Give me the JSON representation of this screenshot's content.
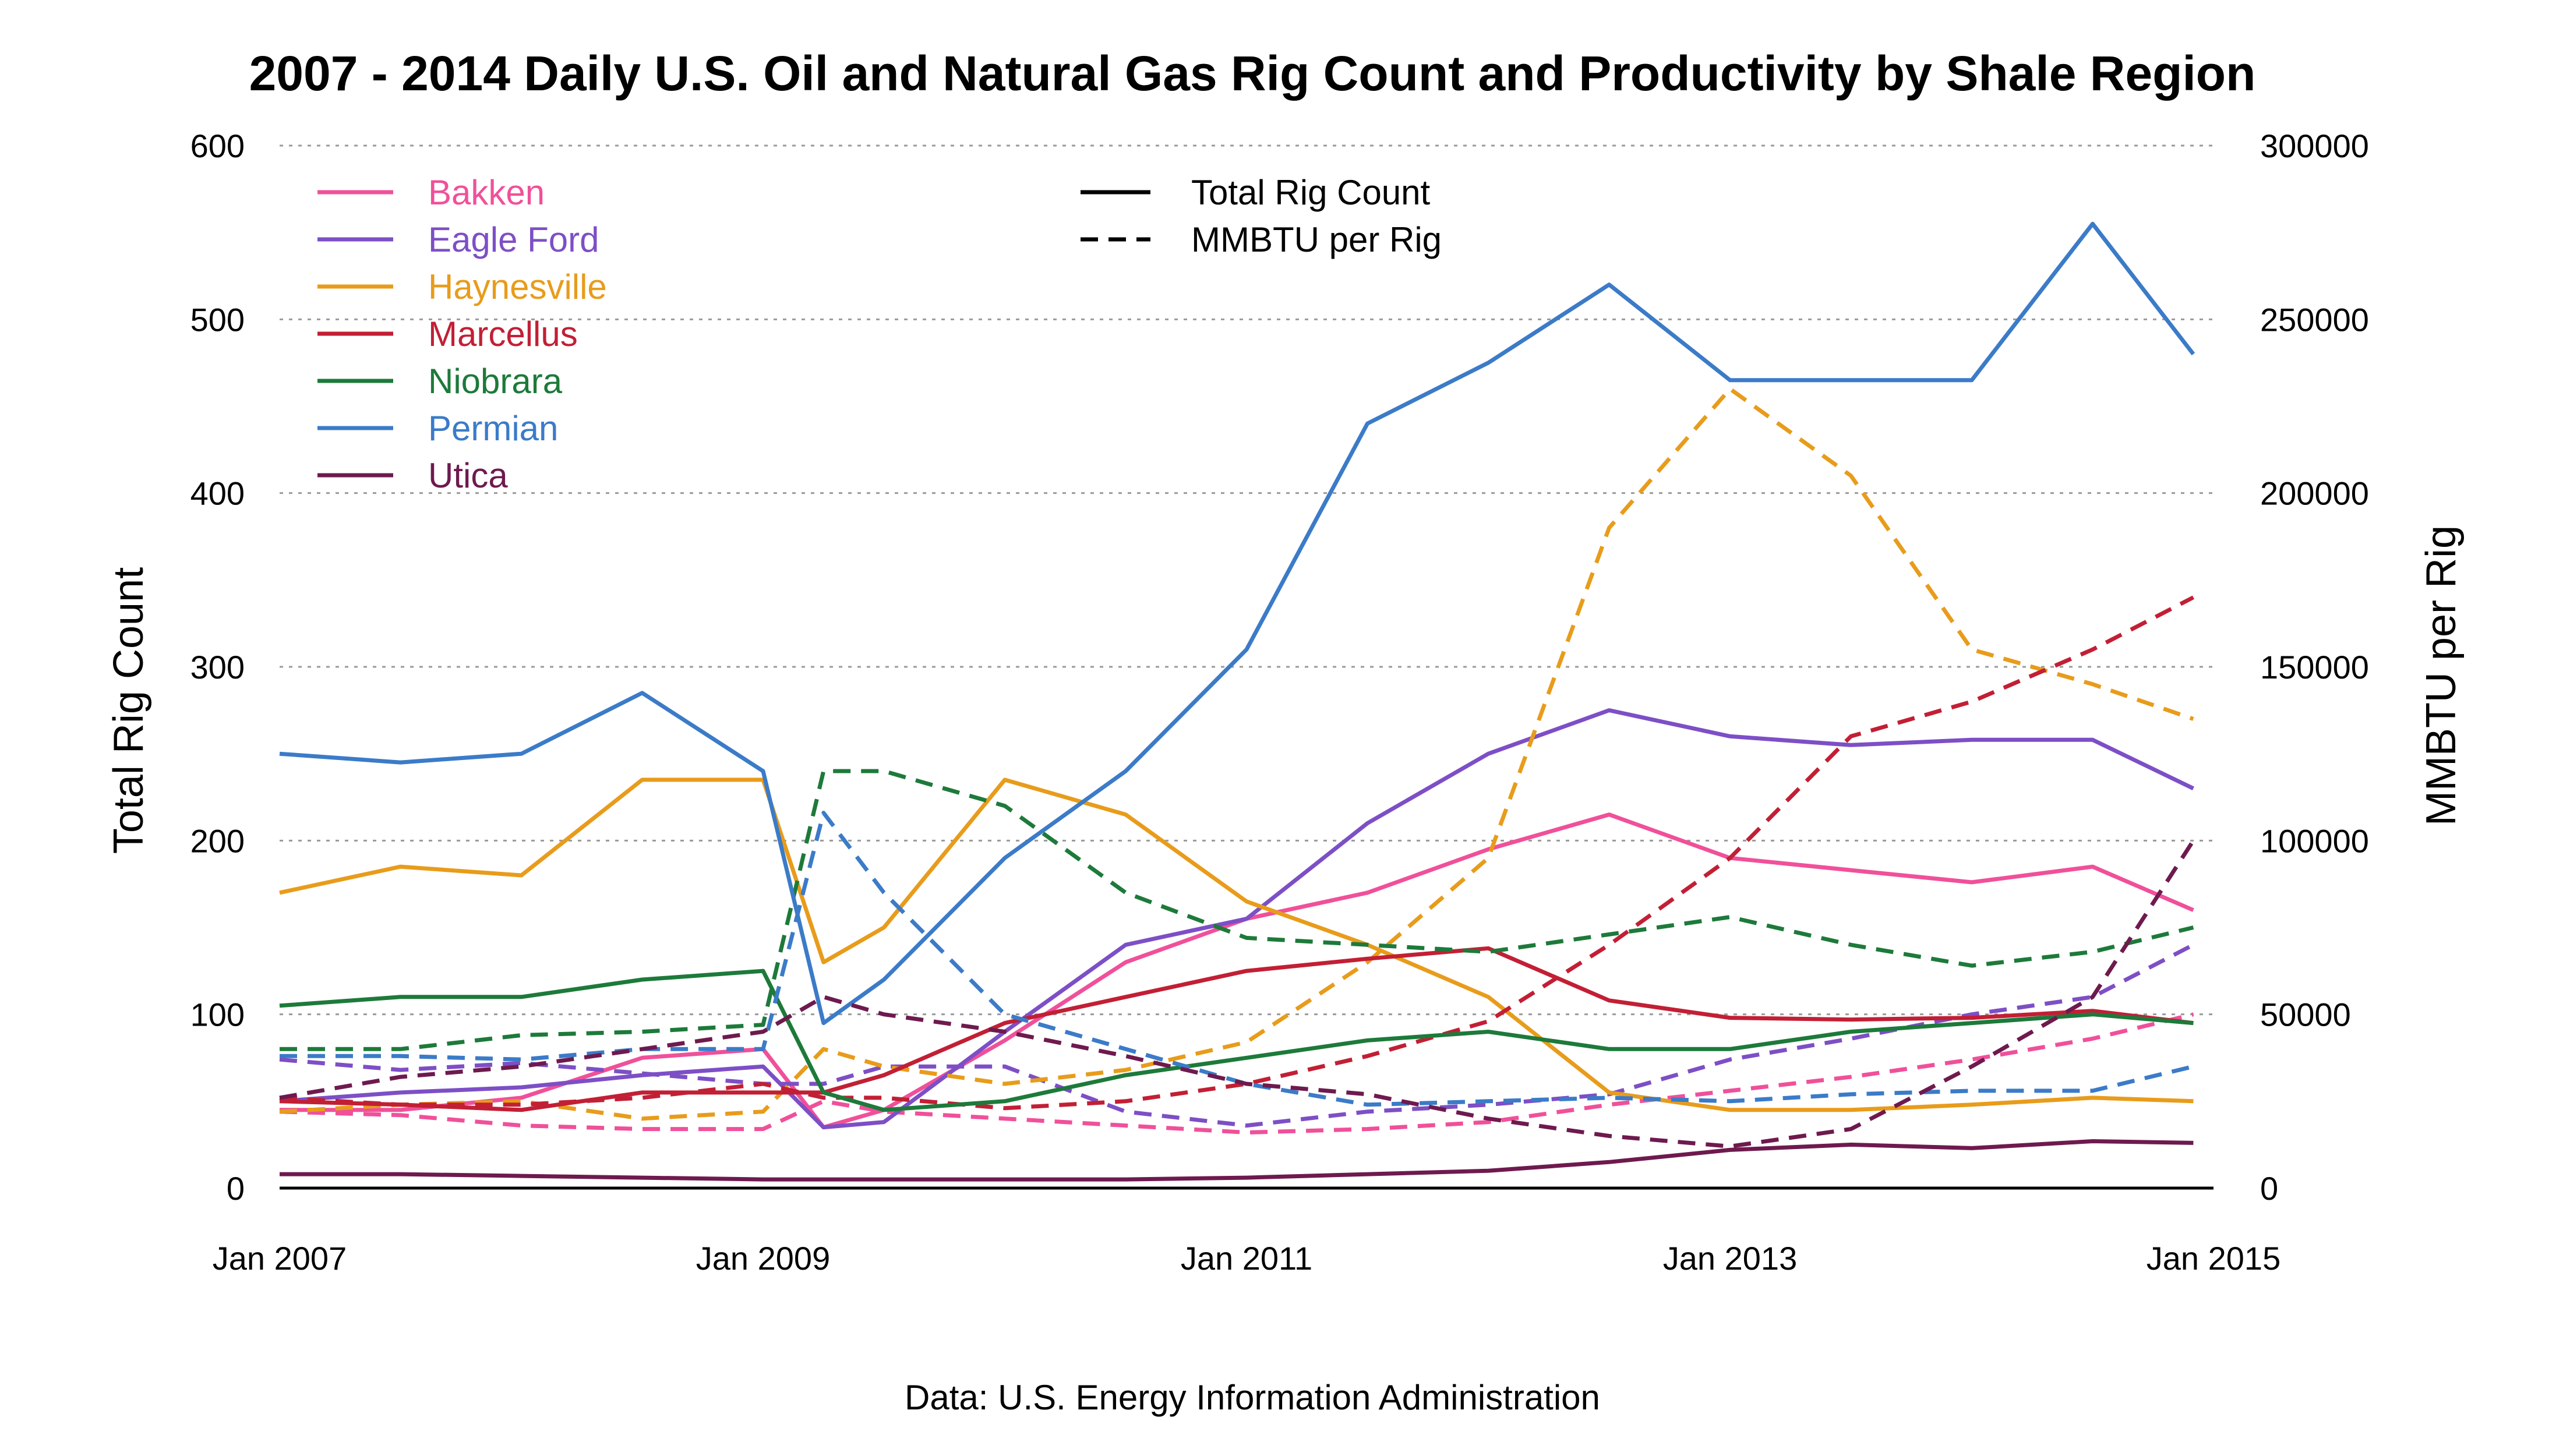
{
  "chart_data": {
    "type": "line",
    "title": "2007 - 2014 Daily U.S. Oil and Natural Gas Rig Count and Productivity by Shale Region",
    "caption": "Data: U.S. Energy Information Administration",
    "xlabel": "",
    "ylabel": "Total Rig Count",
    "y2label": "MMBTU per Rig",
    "x_ticks": [
      "Jan 2007",
      "Jan 2009",
      "Jan 2011",
      "Jan 2013",
      "Jan 2015"
    ],
    "x_range": [
      "2007-01",
      "2015-01"
    ],
    "y_ticks": [
      "0",
      "100",
      "200",
      "300",
      "400",
      "500",
      "600"
    ],
    "y2_ticks": [
      "0",
      "50000",
      "100000",
      "150000",
      "200000",
      "250000",
      "300000"
    ],
    "ylim": [
      0,
      600
    ],
    "y2lim": [
      0,
      300000
    ],
    "grid": true,
    "legend_regions_position": "top-left",
    "legend_styles_position": "top-center",
    "legend_styles": [
      {
        "label": "Total Rig Count",
        "dash": "solid"
      },
      {
        "label": "MMBTU per Rig",
        "dash": "dashed"
      }
    ],
    "x_dates": [
      "2007-01",
      "2007-07",
      "2008-01",
      "2008-07",
      "2009-01",
      "2009-04",
      "2009-07",
      "2010-01",
      "2010-07",
      "2011-01",
      "2011-07",
      "2012-01",
      "2012-07",
      "2013-01",
      "2013-07",
      "2014-01",
      "2014-07",
      "2014-12"
    ],
    "series": [
      {
        "name": "Bakken",
        "color": "#F0509A",
        "rigs": [
          45,
          45,
          52,
          75,
          80,
          35,
          45,
          85,
          130,
          155,
          170,
          195,
          215,
          190,
          183,
          176,
          185,
          160
        ],
        "mmbtu": [
          22000,
          21000,
          18000,
          17000,
          17000,
          25000,
          22000,
          20000,
          18000,
          16000,
          17000,
          19000,
          24000,
          28000,
          32000,
          37000,
          43000,
          50000
        ]
      },
      {
        "name": "Eagle Ford",
        "color": "#7D4FC6",
        "rigs": [
          50,
          55,
          58,
          65,
          70,
          35,
          38,
          90,
          140,
          155,
          210,
          250,
          275,
          260,
          255,
          258,
          258,
          230
        ],
        "mmbtu": [
          37000,
          34000,
          36000,
          33000,
          30000,
          30000,
          35000,
          35000,
          22000,
          18000,
          22000,
          24000,
          27000,
          37000,
          43000,
          50000,
          55000,
          70000
        ]
      },
      {
        "name": "Haynesville",
        "color": "#E89C1B",
        "rigs": [
          170,
          185,
          180,
          235,
          235,
          130,
          150,
          235,
          215,
          165,
          140,
          110,
          55,
          45,
          45,
          48,
          52,
          50
        ],
        "mmbtu": [
          22000,
          24000,
          25000,
          20000,
          22000,
          40000,
          35000,
          30000,
          34000,
          42000,
          65000,
          95000,
          190000,
          230000,
          205000,
          155000,
          145000,
          135000
        ]
      },
      {
        "name": "Marcellus",
        "color": "#C21F35",
        "rigs": [
          50,
          48,
          45,
          55,
          55,
          55,
          65,
          95,
          110,
          125,
          132,
          138,
          108,
          98,
          97,
          98,
          102,
          95
        ],
        "mmbtu": [
          26000,
          24000,
          24000,
          26000,
          30000,
          26000,
          26000,
          23000,
          25000,
          30000,
          38000,
          48000,
          70000,
          95000,
          130000,
          140000,
          155000,
          170000
        ]
      },
      {
        "name": "Niobrara",
        "color": "#1D7A3A",
        "rigs": [
          105,
          110,
          110,
          120,
          125,
          55,
          45,
          50,
          65,
          75,
          85,
          90,
          80,
          80,
          90,
          95,
          100,
          95
        ],
        "mmbtu": [
          40000,
          40000,
          44000,
          45000,
          47000,
          120000,
          120000,
          110000,
          85000,
          72000,
          70000,
          68000,
          73000,
          78000,
          70000,
          64000,
          68000,
          75000
        ]
      },
      {
        "name": "Permian",
        "color": "#3B7BC8",
        "rigs": [
          250,
          245,
          250,
          285,
          240,
          95,
          120,
          190,
          240,
          310,
          440,
          475,
          520,
          465,
          465,
          465,
          555,
          480
        ],
        "mmbtu": [
          38000,
          38000,
          37000,
          40000,
          40000,
          108000,
          85000,
          50000,
          40000,
          30000,
          24000,
          25000,
          26000,
          25000,
          27000,
          28000,
          28000,
          35000
        ]
      },
      {
        "name": "Utica",
        "color": "#6E1A4E",
        "rigs": [
          8,
          8,
          7,
          6,
          5,
          5,
          5,
          5,
          5,
          6,
          8,
          10,
          15,
          22,
          25,
          23,
          27,
          26
        ],
        "mmbtu": [
          26000,
          32000,
          35000,
          40000,
          45000,
          55000,
          50000,
          45000,
          38000,
          30000,
          27000,
          20000,
          15000,
          12000,
          17000,
          35000,
          55000,
          100000
        ]
      }
    ]
  }
}
